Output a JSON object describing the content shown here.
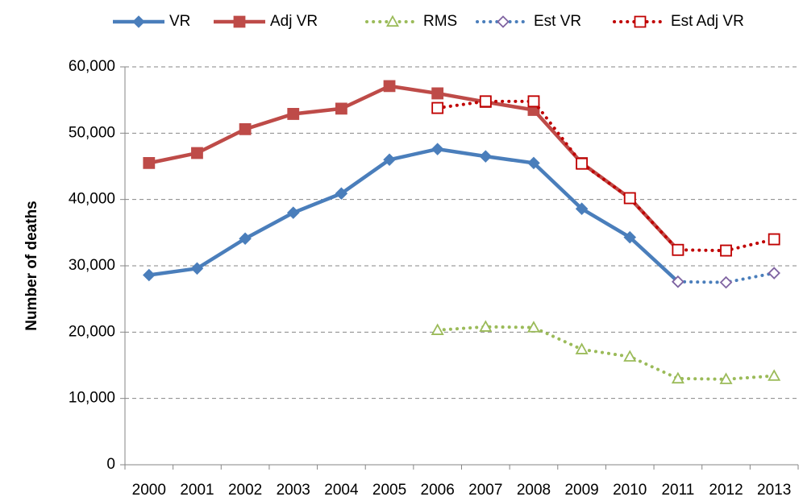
{
  "chart_data": {
    "type": "line",
    "y_label": "Number of deaths",
    "categories": [
      "2000",
      "2001",
      "2002",
      "2003",
      "2004",
      "2005",
      "2006",
      "2007",
      "2008",
      "2009",
      "2010",
      "2011",
      "2012",
      "2013"
    ],
    "series": [
      {
        "name": "VR",
        "color": "#4a7ebb",
        "line_style": "solid",
        "marker": "diamond",
        "marker_fill": "#4a7ebb",
        "values": [
          28600,
          29600,
          34100,
          38000,
          40900,
          46000,
          47600,
          46500,
          45500,
          38600,
          34300,
          27600,
          null,
          null
        ]
      },
      {
        "name": "Adj VR",
        "color": "#be4b48",
        "line_style": "solid",
        "marker": "square",
        "marker_fill": "#be4b48",
        "values": [
          45500,
          47000,
          50600,
          52900,
          53700,
          57100,
          56000,
          54700,
          53500,
          45500,
          40200,
          32400,
          null,
          null
        ]
      },
      {
        "name": "RMS",
        "color": "#9bbb59",
        "line_style": "dotted",
        "marker": "triangle",
        "marker_fill": "#ffffff",
        "values": [
          null,
          null,
          null,
          null,
          null,
          null,
          20300,
          20800,
          20700,
          17400,
          16300,
          13000,
          12900,
          13400
        ]
      },
      {
        "name": "Est VR",
        "color": "#4a7ebb",
        "line_style": "dotted",
        "marker": "diamond",
        "marker_color": "#8064a2",
        "marker_fill": "#ffffff",
        "values": [
          null,
          null,
          null,
          null,
          null,
          null,
          null,
          null,
          null,
          null,
          null,
          27600,
          27500,
          28900
        ]
      },
      {
        "name": "Est Adj VR",
        "color": "#c00000",
        "line_style": "dotted",
        "marker": "square",
        "marker_fill": "#ffffff",
        "values": [
          null,
          null,
          null,
          null,
          null,
          null,
          53800,
          54800,
          54800,
          45400,
          40200,
          32400,
          32300,
          34000
        ]
      }
    ],
    "ylim": [
      0,
      60000
    ],
    "yticks": [
      0,
      {
        "value": 10000,
        "label": "10,000"
      },
      {
        "value": 20000,
        "label": "20,000"
      },
      {
        "value": 30000,
        "label": "30,000"
      },
      {
        "value": 40000,
        "label": "40,000"
      },
      {
        "value": 50000,
        "label": "50,000"
      },
      {
        "value": 60000,
        "label": "60,000"
      }
    ],
    "grid": true,
    "legend": "top"
  }
}
